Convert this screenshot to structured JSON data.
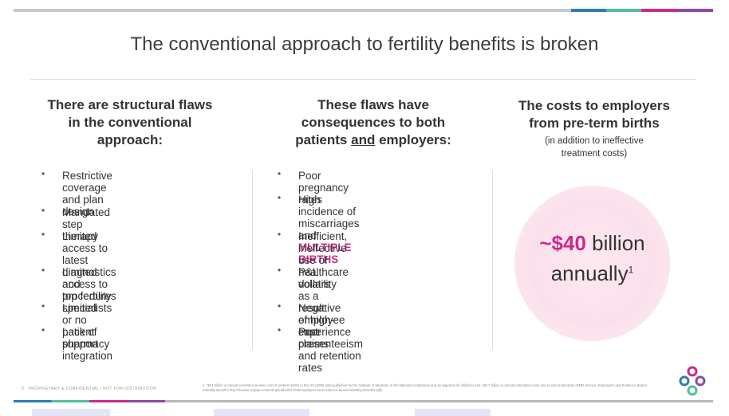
{
  "slide": {
    "title": "The conventional approach to fertility benefits is broken",
    "accent_colors": [
      "#2f7ab3",
      "#4fc0a0",
      "#cc2a8a",
      "#8a4aa6"
    ],
    "column1": {
      "heading": [
        "There are structural flaws",
        "in the conventional",
        "approach:"
      ],
      "bullets": [
        [
          "Restrictive coverage and plan",
          "design"
        ],
        [
          "Mandated step therapy"
        ],
        [
          "Limited access to latest",
          "diagnostics and procedures"
        ],
        [
          "Limited access to top fertility",
          "specialists"
        ],
        [
          "Limited or no patient support"
        ],
        [
          "Lack of pharmacy integration"
        ]
      ]
    },
    "column2": {
      "heading_line1": "These flaws have",
      "heading_line2": "consequences to both",
      "heading_line3_pre": "patients ",
      "heading_line3_u": "and",
      "heading_line3_post": " employers:",
      "bullets": [
        [
          "Poor pregnancy rates"
        ],
        [
          "High incidence of miscarriages",
          "and "
        ],
        [
          "Inefficient, ineffective use of",
          "healthcare dollars"
        ],
        [
          "P&L volatility as a result of high-",
          "cost claims"
        ],
        [
          "Negative employee experience"
        ],
        [
          "Poor presenteeism and retention",
          "rates"
        ]
      ],
      "highlight": "MULTIPLE BIRTHS"
    },
    "column3": {
      "heading": [
        "The costs to employers",
        "from pre-term births"
      ],
      "subheading": [
        "(in addition to ineffective",
        "treatment costs)"
      ],
      "stat_value": "~$40",
      "stat_unit": " billion",
      "stat_period": "annually",
      "stat_footnote_ref": "1"
    },
    "footer": {
      "page_number": "9",
      "confidential": "PROPRIETARY & CONFIDENTIAL   |   NOT FOR DISTRIBUTION",
      "footnote": "1. \"$34 billion in annual societal economic cost of preterm births in the US (2005 data published by the Institute of Medicine of the National Academies and as adjusted for inflation) and ~$5.7 billion in annual estimated costs due to lost productivity (EMD Serono, Employers and Evidence Based Infertility Benefits http://resolve.org/wp-content/uploads/2017/05/employers-and-evidence-based-infertility-benefits.pdf)"
    }
  }
}
